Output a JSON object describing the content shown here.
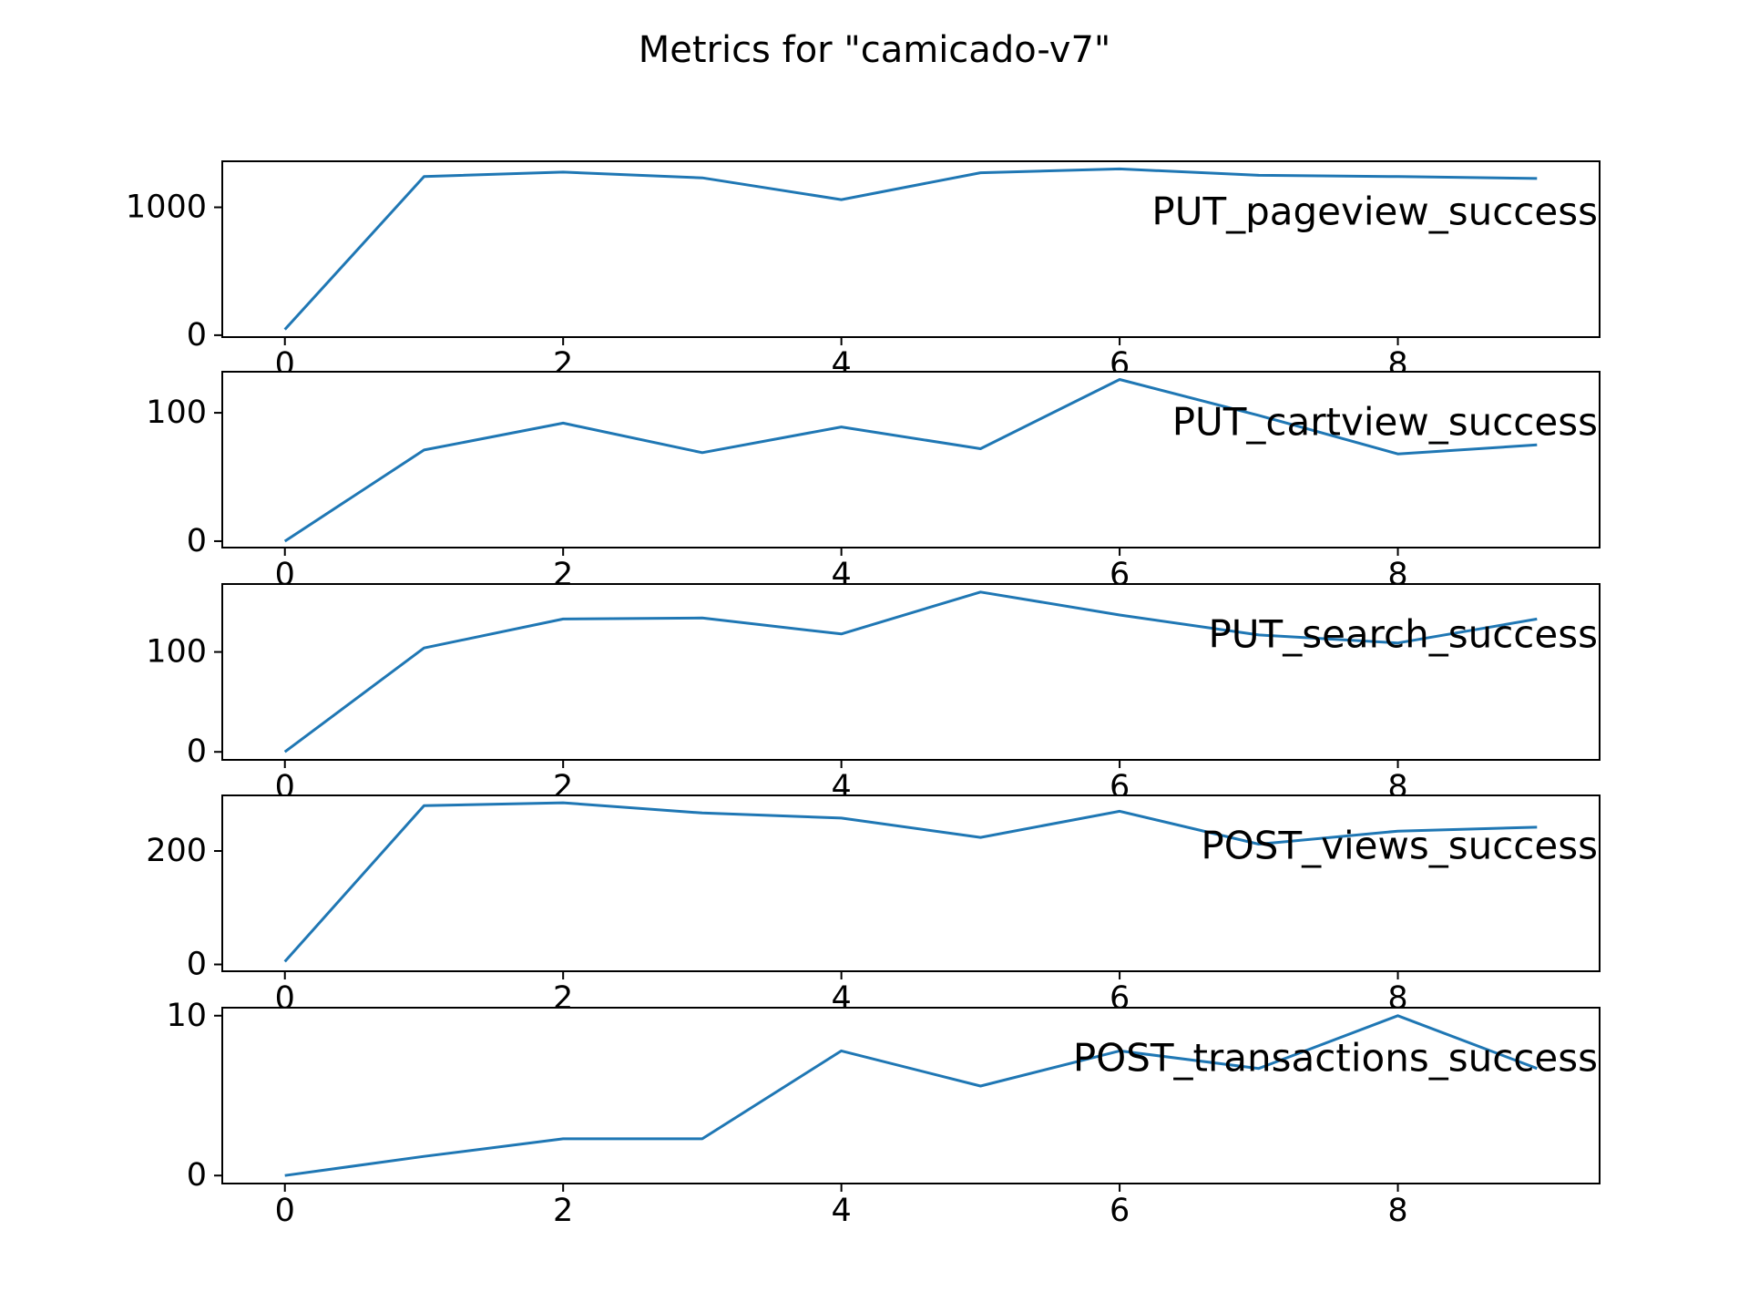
{
  "figure": {
    "title": "Metrics for \"camicado-v7\""
  },
  "chart_data": [
    {
      "type": "line",
      "label": "PUT_pageview_success",
      "x": [
        0,
        1,
        2,
        3,
        4,
        5,
        6,
        7,
        8,
        9
      ],
      "values": [
        45,
        1240,
        1275,
        1230,
        1060,
        1270,
        1300,
        1250,
        1240,
        1225
      ],
      "color": "#1f77b4",
      "xlim": [
        -0.45,
        9.45
      ],
      "ylim": [
        -15,
        1360
      ],
      "xticks": [
        "0",
        "2",
        "4",
        "6",
        "8"
      ],
      "yticks": [
        0,
        1000
      ]
    },
    {
      "type": "line",
      "label": "PUT_cartview_success",
      "x": [
        0,
        1,
        2,
        3,
        4,
        5,
        6,
        7,
        8,
        9
      ],
      "values": [
        0,
        71,
        92,
        69,
        89,
        72,
        126,
        98,
        68,
        75
      ],
      "color": "#1f77b4",
      "xlim": [
        -0.45,
        9.45
      ],
      "ylim": [
        -5,
        132
      ],
      "xticks": [
        "0",
        "2",
        "4",
        "6",
        "8"
      ],
      "yticks": [
        0,
        100
      ]
    },
    {
      "type": "line",
      "label": "PUT_search_success",
      "x": [
        0,
        1,
        2,
        3,
        4,
        5,
        6,
        7,
        8,
        9
      ],
      "values": [
        0,
        104,
        133,
        134,
        118,
        160,
        137,
        117,
        109,
        133
      ],
      "color": "#1f77b4",
      "xlim": [
        -0.45,
        9.45
      ],
      "ylim": [
        -8,
        168
      ],
      "xticks": [
        "0",
        "2",
        "4",
        "6",
        "8"
      ],
      "yticks": [
        0,
        100
      ]
    },
    {
      "type": "line",
      "label": "POST_views_success",
      "x": [
        0,
        1,
        2,
        3,
        4,
        5,
        6,
        7,
        8,
        9
      ],
      "values": [
        5,
        280,
        285,
        267,
        258,
        224,
        270,
        212,
        235,
        242
      ],
      "color": "#1f77b4",
      "xlim": [
        -0.45,
        9.45
      ],
      "ylim": [
        -12,
        298
      ],
      "xticks": [
        "0",
        "2",
        "4",
        "6",
        "8"
      ],
      "yticks": [
        0,
        200
      ]
    },
    {
      "type": "line",
      "label": "POST_transactions_success",
      "x": [
        0,
        1,
        2,
        3,
        4,
        5,
        6,
        7,
        8,
        9
      ],
      "values": [
        0,
        1.2,
        2.3,
        2.3,
        7.8,
        5.6,
        7.8,
        6.7,
        10,
        6.7
      ],
      "color": "#1f77b4",
      "xlim": [
        -0.45,
        9.45
      ],
      "ylim": [
        -0.5,
        10.5
      ],
      "xticks": [
        "0",
        "2",
        "4",
        "6",
        "8"
      ],
      "yticks": [
        0,
        10
      ]
    }
  ]
}
